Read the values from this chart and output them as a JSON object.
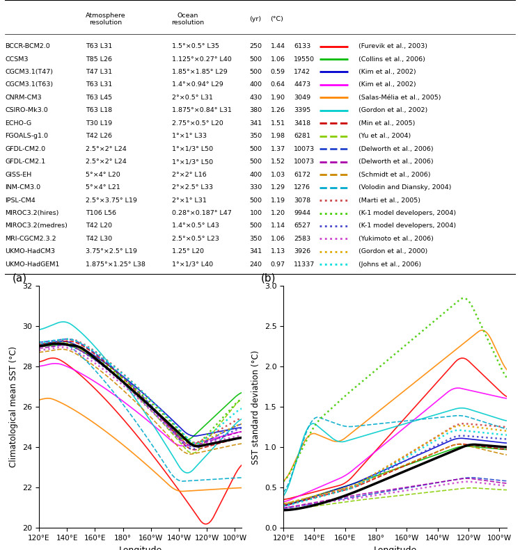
{
  "models": [
    {
      "name": "BCCR-BCM2.0",
      "color": "#ff0000",
      "linestyle": "-",
      "linewidth": 1.2
    },
    {
      "name": "CCSM3",
      "color": "#00bb00",
      "linestyle": "-",
      "linewidth": 1.2
    },
    {
      "name": "CGCM3.1(T47)",
      "color": "#0000cc",
      "linestyle": "-",
      "linewidth": 1.2
    },
    {
      "name": "CGCM3.1(T63)",
      "color": "#ff00ff",
      "linestyle": "-",
      "linewidth": 1.2
    },
    {
      "name": "CNRM-CM3",
      "color": "#ff8800",
      "linestyle": "-",
      "linewidth": 1.2
    },
    {
      "name": "CSIRO-Mk3.0",
      "color": "#00cccc",
      "linestyle": "-",
      "linewidth": 1.2
    },
    {
      "name": "ECHO-G",
      "color": "#cc0000",
      "linestyle": "--",
      "linewidth": 1.2
    },
    {
      "name": "FGOALS-g1.0",
      "color": "#88cc00",
      "linestyle": "--",
      "linewidth": 1.2
    },
    {
      "name": "GFDL-CM2.0",
      "color": "#2244cc",
      "linestyle": "--",
      "linewidth": 1.2
    },
    {
      "name": "GFDL-CM2.1",
      "color": "#aa00aa",
      "linestyle": "--",
      "linewidth": 1.2
    },
    {
      "name": "GISS-EH",
      "color": "#cc8800",
      "linestyle": "--",
      "linewidth": 1.2
    },
    {
      "name": "INM-CM3.0",
      "color": "#00aacc",
      "linestyle": "--",
      "linewidth": 1.2
    },
    {
      "name": "IPSL-CM4",
      "color": "#cc4444",
      "linestyle": ":",
      "linewidth": 1.8
    },
    {
      "name": "MIROC3.2(hires)",
      "color": "#44cc00",
      "linestyle": ":",
      "linewidth": 1.8
    },
    {
      "name": "MIROC3.2(medres)",
      "color": "#4444cc",
      "linestyle": ":",
      "linewidth": 1.8
    },
    {
      "name": "MRI-CGCM2.3.2",
      "color": "#cc44cc",
      "linestyle": ":",
      "linewidth": 1.8
    },
    {
      "name": "UKMO-HadCM3",
      "color": "#ddaa00",
      "linestyle": ":",
      "linewidth": 1.8
    },
    {
      "name": "UKMO-HadGEM1",
      "color": "#00dddd",
      "linestyle": ":",
      "linewidth": 1.8
    }
  ],
  "table_rows": [
    [
      "BCCR-BCM2.0",
      "T63 L31",
      "1.5°×0.5° L35",
      "250",
      "1.44",
      "6133",
      "#ff0000",
      "-",
      "(Furevik et al., 2003)"
    ],
    [
      "CCSM3",
      "T85 L26",
      "1.125°×0.27° L40",
      "500",
      "1.06",
      "19550",
      "#00bb00",
      "-",
      "(Collins et al., 2006)"
    ],
    [
      "CGCM3.1(T47)",
      "T47 L31",
      "1.85°×1.85° L29",
      "500",
      "0.59",
      "1742",
      "#0000cc",
      "-",
      "(Kim et al., 2002)"
    ],
    [
      "CGCM3.1(T63)",
      "T63 L31",
      "1.4°×0.94° L29",
      "400",
      "0.64",
      "4473",
      "#ff00ff",
      "-",
      "(Kim et al., 2002)"
    ],
    [
      "CNRM-CM3",
      "T63 L45",
      "2°×0.5° L31",
      "430",
      "1.90",
      "3049",
      "#ff8800",
      "-",
      "(Salas-Mélia et al., 2005)"
    ],
    [
      "CSIRO-Mk3.0",
      "T63 L18",
      "1.875°×0.84° L31",
      "380",
      "1.26",
      "3395",
      "#00cccc",
      "-",
      "(Gordon et al., 2002)"
    ],
    [
      "ECHO-G",
      "T30 L19",
      "2.75°×0.5° L20",
      "341",
      "1.51",
      "3418",
      "#cc0000",
      "--",
      "(Min et al., 2005)"
    ],
    [
      "FGOALS-g1.0",
      "T42 L26",
      "1°×1° L33",
      "350",
      "1.98",
      "6281",
      "#88cc00",
      "--",
      "(Yu et al., 2004)"
    ],
    [
      "GFDL-CM2.0",
      "2.5°×2° L24",
      "1°×1/3° L50",
      "500",
      "1.37",
      "10073",
      "#2244cc",
      "--",
      "(Delworth et al., 2006)"
    ],
    [
      "GFDL-CM2.1",
      "2.5°×2° L24",
      "1°×1/3° L50",
      "500",
      "1.52",
      "10073",
      "#aa00aa",
      "--",
      "(Delworth et al., 2006)"
    ],
    [
      "GISS-EH",
      "5°×4° L20",
      "2°×2° L16",
      "400",
      "1.03",
      "6172",
      "#cc8800",
      "--",
      "(Schmidt et al., 2006)"
    ],
    [
      "INM-CM3.0",
      "5°×4° L21",
      "2°×2.5° L33",
      "330",
      "1.29",
      "1276",
      "#00aacc",
      "--",
      "(Volodin and Diansky, 2004)"
    ],
    [
      "IPSL-CM4",
      "2.5°×3.75° L19",
      "2°×1° L31",
      "500",
      "1.19",
      "3078",
      "#cc4444",
      ":",
      "(Marti et al., 2005)"
    ],
    [
      "MIROC3.2(hires)",
      "T106 L56",
      "0.28°×0.187° L47",
      "100",
      "1.20",
      "9944",
      "#44cc00",
      ":",
      "(K-1 model developers, 2004)"
    ],
    [
      "MIROC3.2(medres)",
      "T42 L20",
      "1.4°×0.5° L43",
      "500",
      "1.14",
      "6527",
      "#4444cc",
      ":",
      "(K-1 model developers, 2004)"
    ],
    [
      "MRI-CGCM2.3.2",
      "T42 L30",
      "2.5°×0.5° L23",
      "350",
      "1.06",
      "2583",
      "#cc44cc",
      ":",
      "(Yukimoto et al., 2006)"
    ],
    [
      "UKMO-HadCM3",
      "3.75°×2.5° L19",
      "1.25° L20",
      "341",
      "1.13",
      "3926",
      "#ddaa00",
      ":",
      "(Gordon et al., 2000)"
    ],
    [
      "UKMO-HadGEM1",
      "1.875°×1.25° L38",
      "1°×1/3° L40",
      "240",
      "0.97",
      "11337",
      "#00dddd",
      ":",
      "(Johns et al., 2006)"
    ]
  ],
  "lon_ticks": [
    120,
    140,
    160,
    180,
    200,
    220,
    240,
    260
  ],
  "lon_labels": [
    "120°E",
    "140°E",
    "160°E",
    "180°",
    "160°W",
    "140°W",
    "120°W",
    "100°W"
  ],
  "panel_a": {
    "ylabel": "Climatological mean SST (°C)",
    "xlabel": "Longitude",
    "ylim": [
      20.0,
      32.0
    ],
    "yticks": [
      20.0,
      22.0,
      24.0,
      26.0,
      28.0,
      30.0,
      32.0
    ],
    "label": "(a)"
  },
  "panel_b": {
    "ylabel": "SST standard deviation (°C)",
    "xlabel": "Longitude",
    "ylim": [
      0.0,
      3.0
    ],
    "yticks": [
      0.0,
      0.5,
      1.0,
      1.5,
      2.0,
      2.5,
      3.0
    ],
    "label": "(b)"
  }
}
